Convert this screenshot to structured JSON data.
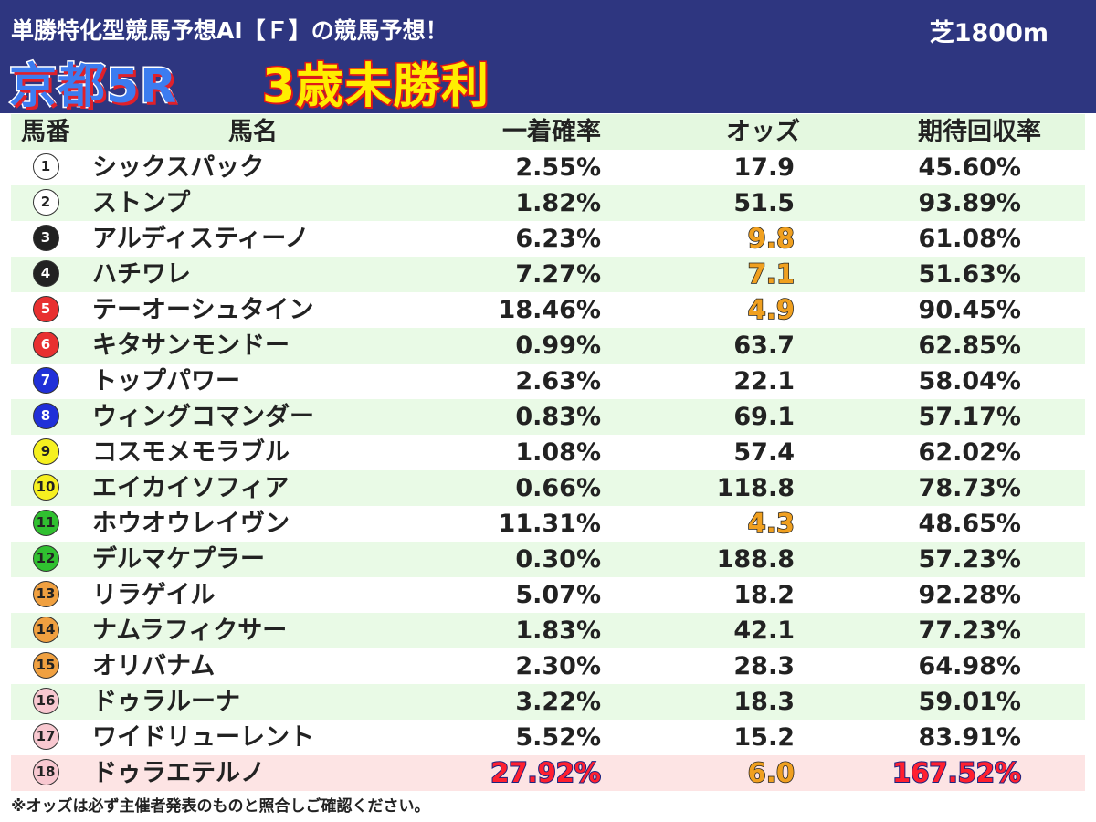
{
  "header": {
    "subtitle": "単勝特化型競馬予想AI【Ｆ】の競馬予想！",
    "course": "芝1800m",
    "race_name": "京都5R",
    "race_class": "3歳未勝利"
  },
  "columns": {
    "num": "馬番",
    "name": "馬名",
    "prob": "一着確率",
    "odds": "オッズ",
    "ret": "期待回収率"
  },
  "colors": {
    "header_bg": "#2e3680",
    "row_green": "#e9fae6",
    "row_highlight": "#fde4e4",
    "odds_highlight": "#f0a020"
  },
  "horses": [
    {
      "num": "1",
      "name": "シックスパック",
      "prob": "2.55%",
      "odds": "17.9",
      "ret": "45.60%",
      "circle_bg": "#ffffff",
      "circle_fg": "#222222",
      "odds_hl": false,
      "top": false
    },
    {
      "num": "2",
      "name": "ストンプ",
      "prob": "1.82%",
      "odds": "51.5",
      "ret": "93.89%",
      "circle_bg": "#ffffff",
      "circle_fg": "#222222",
      "odds_hl": false,
      "top": false
    },
    {
      "num": "3",
      "name": "アルディスティーノ",
      "prob": "6.23%",
      "odds": "9.8",
      "ret": "61.08%",
      "circle_bg": "#222222",
      "circle_fg": "#ffffff",
      "odds_hl": true,
      "top": false
    },
    {
      "num": "4",
      "name": "ハチワレ",
      "prob": "7.27%",
      "odds": "7.1",
      "ret": "51.63%",
      "circle_bg": "#222222",
      "circle_fg": "#ffffff",
      "odds_hl": true,
      "top": false
    },
    {
      "num": "5",
      "name": "テーオーシュタイン",
      "prob": "18.46%",
      "odds": "4.9",
      "ret": "90.45%",
      "circle_bg": "#e83030",
      "circle_fg": "#ffffff",
      "odds_hl": true,
      "top": false
    },
    {
      "num": "6",
      "name": "キタサンモンドー",
      "prob": "0.99%",
      "odds": "63.7",
      "ret": "62.85%",
      "circle_bg": "#e83030",
      "circle_fg": "#ffffff",
      "odds_hl": false,
      "top": false
    },
    {
      "num": "7",
      "name": "トップパワー",
      "prob": "2.63%",
      "odds": "22.1",
      "ret": "58.04%",
      "circle_bg": "#2030d8",
      "circle_fg": "#ffffff",
      "odds_hl": false,
      "top": false
    },
    {
      "num": "8",
      "name": "ウィングコマンダー",
      "prob": "0.83%",
      "odds": "69.1",
      "ret": "57.17%",
      "circle_bg": "#2030d8",
      "circle_fg": "#ffffff",
      "odds_hl": false,
      "top": false
    },
    {
      "num": "9",
      "name": "コスモメモラブル",
      "prob": "1.08%",
      "odds": "57.4",
      "ret": "62.02%",
      "circle_bg": "#f6f020",
      "circle_fg": "#222222",
      "odds_hl": false,
      "top": false
    },
    {
      "num": "10",
      "name": "エイカイソフィア",
      "prob": "0.66%",
      "odds": "118.8",
      "ret": "78.73%",
      "circle_bg": "#f6f020",
      "circle_fg": "#222222",
      "odds_hl": false,
      "top": false
    },
    {
      "num": "11",
      "name": "ホウオウレイヴン",
      "prob": "11.31%",
      "odds": "4.3",
      "ret": "48.65%",
      "circle_bg": "#30c030",
      "circle_fg": "#222222",
      "odds_hl": true,
      "top": false
    },
    {
      "num": "12",
      "name": "デルマケプラー",
      "prob": "0.30%",
      "odds": "188.8",
      "ret": "57.23%",
      "circle_bg": "#30c030",
      "circle_fg": "#222222",
      "odds_hl": false,
      "top": false
    },
    {
      "num": "13",
      "name": "リラゲイル",
      "prob": "5.07%",
      "odds": "18.2",
      "ret": "92.28%",
      "circle_bg": "#f0a040",
      "circle_fg": "#222222",
      "odds_hl": false,
      "top": false
    },
    {
      "num": "14",
      "name": "ナムラフィクサー",
      "prob": "1.83%",
      "odds": "42.1",
      "ret": "77.23%",
      "circle_bg": "#f0a040",
      "circle_fg": "#222222",
      "odds_hl": false,
      "top": false
    },
    {
      "num": "15",
      "name": "オリバナム",
      "prob": "2.30%",
      "odds": "28.3",
      "ret": "64.98%",
      "circle_bg": "#f0a040",
      "circle_fg": "#222222",
      "odds_hl": false,
      "top": false
    },
    {
      "num": "16",
      "name": "ドゥラルーナ",
      "prob": "3.22%",
      "odds": "18.3",
      "ret": "59.01%",
      "circle_bg": "#f8c8d0",
      "circle_fg": "#222222",
      "odds_hl": false,
      "top": false
    },
    {
      "num": "17",
      "name": "ワイドリューレント",
      "prob": "5.52%",
      "odds": "15.2",
      "ret": "83.91%",
      "circle_bg": "#f8c8d0",
      "circle_fg": "#222222",
      "odds_hl": false,
      "top": false
    },
    {
      "num": "18",
      "name": "ドゥラエテルノ",
      "prob": "27.92%",
      "odds": "6.0",
      "ret": "167.52%",
      "circle_bg": "#f8c8d0",
      "circle_fg": "#222222",
      "odds_hl": true,
      "top": true
    }
  ],
  "footnote": "※オッズは必ず主催者発表のものと照合しご確認ください。"
}
